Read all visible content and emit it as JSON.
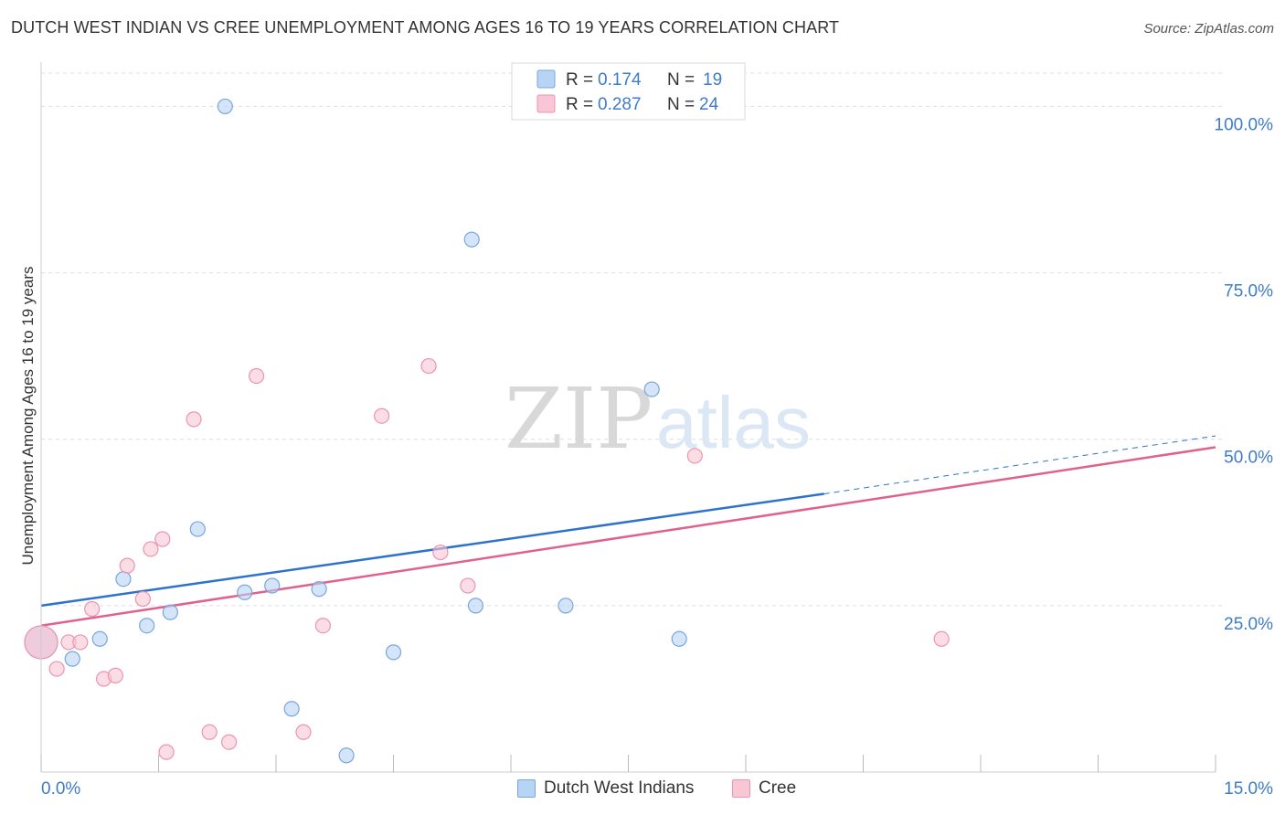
{
  "title": "DUTCH WEST INDIAN VS CREE UNEMPLOYMENT AMONG AGES 16 TO 19 YEARS CORRELATION CHART",
  "source": "Source: ZipAtlas.com",
  "watermark": {
    "zip": "ZIP",
    "atlas": "atlas"
  },
  "colors": {
    "blue_fill": "#b8d4f5",
    "blue_stroke": "#7aa6dc",
    "blue_line": "#2f72cc",
    "pink_fill": "#f9c6d6",
    "pink_stroke": "#ec94b0",
    "pink_line": "#e0628a",
    "tick_label": "#3d7cc9",
    "grid": "#dddddd"
  },
  "legend_top": [
    {
      "r_label": "R =",
      "r_value": "0.174",
      "n_label": "N =",
      "n_value": "19"
    },
    {
      "r_label": "R =",
      "r_value": "0.287",
      "n_label": "N =",
      "n_value": "24"
    }
  ],
  "chart_data": {
    "type": "scatter",
    "xlabel": "",
    "ylabel": "Unemployment Among Ages 16 to 19 years",
    "xlim": [
      0,
      15
    ],
    "ylim": [
      0,
      105
    ],
    "x_tick_labels": [
      {
        "value": 0,
        "label": "0.0%"
      },
      {
        "value": 15,
        "label": "15.0%"
      }
    ],
    "y_tick_labels": [
      {
        "value": 25,
        "label": "25.0%"
      },
      {
        "value": 50,
        "label": "50.0%"
      },
      {
        "value": 75,
        "label": "75.0%"
      },
      {
        "value": 100,
        "label": "100.0%"
      }
    ],
    "grid": true,
    "legend_position": "top-center",
    "series": [
      {
        "name": "Dutch West Indians",
        "color": "blue",
        "points": [
          [
            0.0,
            19.5
          ],
          [
            0.4,
            17.0
          ],
          [
            0.75,
            20.0
          ],
          [
            1.05,
            29.0
          ],
          [
            1.35,
            22.0
          ],
          [
            1.65,
            24.0
          ],
          [
            2.0,
            36.5
          ],
          [
            2.35,
            100.0
          ],
          [
            2.6,
            27.0
          ],
          [
            2.95,
            28.0
          ],
          [
            3.2,
            9.5
          ],
          [
            3.55,
            27.5
          ],
          [
            3.9,
            2.5
          ],
          [
            4.5,
            18.0
          ],
          [
            5.5,
            80.0
          ],
          [
            5.55,
            25.0
          ],
          [
            6.7,
            25.0
          ],
          [
            7.8,
            57.5
          ],
          [
            8.15,
            20.0
          ]
        ],
        "trend": {
          "x": [
            0,
            10.0
          ],
          "y": [
            25.0,
            41.8
          ]
        },
        "trend_extension": {
          "x": [
            10.0,
            15.0
          ],
          "y": [
            41.8,
            50.5
          ]
        }
      },
      {
        "name": "Cree",
        "color": "pink",
        "points": [
          [
            0.0,
            19.5
          ],
          [
            0.2,
            15.5
          ],
          [
            0.35,
            19.5
          ],
          [
            0.5,
            19.5
          ],
          [
            0.65,
            24.5
          ],
          [
            0.8,
            14.0
          ],
          [
            0.95,
            14.5
          ],
          [
            1.1,
            31.0
          ],
          [
            1.3,
            26.0
          ],
          [
            1.4,
            33.5
          ],
          [
            1.55,
            35.0
          ],
          [
            1.6,
            3.0
          ],
          [
            1.95,
            53.0
          ],
          [
            2.15,
            6.0
          ],
          [
            2.4,
            4.5
          ],
          [
            2.75,
            59.5
          ],
          [
            3.35,
            6.0
          ],
          [
            3.6,
            22.0
          ],
          [
            4.35,
            53.5
          ],
          [
            4.95,
            61.0
          ],
          [
            5.1,
            33.0
          ],
          [
            5.45,
            28.0
          ],
          [
            8.35,
            47.5
          ],
          [
            11.5,
            20.0
          ]
        ],
        "trend": {
          "x": [
            0,
            15.0
          ],
          "y": [
            22.0,
            48.8
          ]
        }
      }
    ]
  }
}
